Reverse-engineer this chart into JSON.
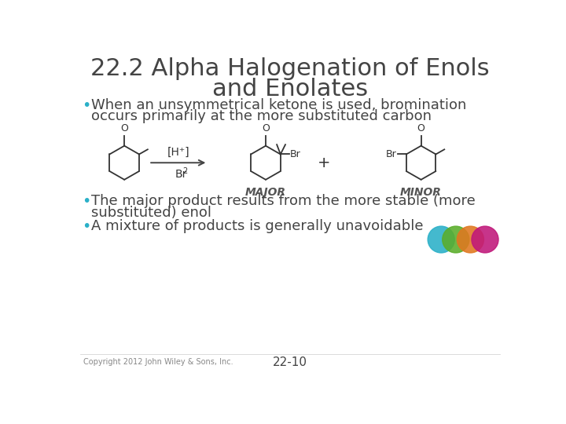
{
  "title_line1": "22.2 Alpha Halogenation of Enols",
  "title_line2": "and Enolates",
  "title_fontsize": 22,
  "title_color": "#444444",
  "bullet_fontsize": 13,
  "bullet_color": "#444444",
  "bullet_dot_color": "#2ab0c8",
  "major_label": "MAJOR",
  "minor_label": "MINOR",
  "label_color": "#555555",
  "copyright_text": "Copyright 2012 John Wiley & Sons, Inc.",
  "page_number": "22-10",
  "footer_fontsize": 7,
  "page_fontsize": 11,
  "background_color": "#ffffff",
  "circle_colors": [
    "#2ab0c8",
    "#5aad2a",
    "#e07820",
    "#c0187a"
  ],
  "circle_alpha": 0.88,
  "arrow_color": "#444444",
  "struct_color": "#333333"
}
